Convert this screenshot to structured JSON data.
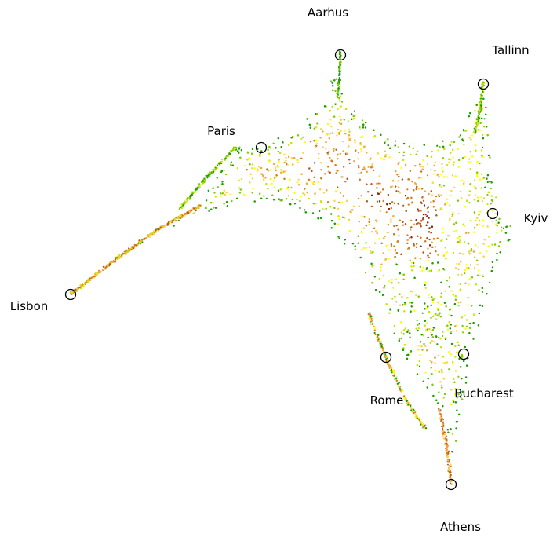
{
  "chart_data": {
    "type": "scatter",
    "title": "",
    "xlabel": "",
    "ylabel": "",
    "axes_visible": false,
    "grid": false,
    "legend": "none",
    "point_palette": [
      "#1a9e00",
      "#7fcc00",
      "#c8e600",
      "#ffff00",
      "#ffd24d",
      "#f0a640",
      "#d97a1a",
      "#b5561a",
      "#8c2a14"
    ],
    "cities": [
      {
        "name": "Aarhus",
        "x": 434,
        "y": -70
      },
      {
        "name": "Tallinn",
        "x": 616,
        "y": -107
      },
      {
        "name": "Paris",
        "x": 333,
        "y": -188
      },
      {
        "name": "Kyiv",
        "x": 628,
        "y": -272
      },
      {
        "name": "Lisbon",
        "x": 90,
        "y": -375
      },
      {
        "name": "Rome",
        "x": 492,
        "y": -455
      },
      {
        "name": "Bucharest",
        "x": 591,
        "y": -451
      },
      {
        "name": "Athens",
        "x": 575,
        "y": -617
      }
    ]
  }
}
